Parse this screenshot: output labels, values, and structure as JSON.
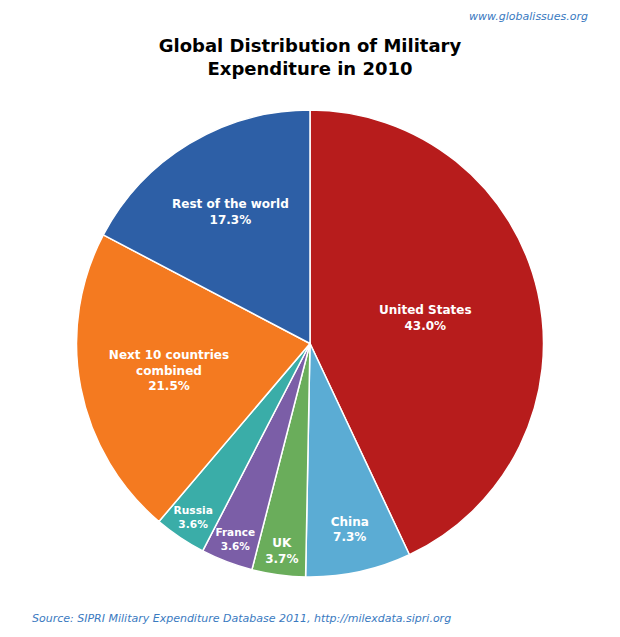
{
  "chart_data": {
    "type": "pie",
    "title": "Global Distribution of Military\nExpenditure in 2010",
    "values": [
      43.0,
      7.3,
      3.7,
      3.6,
      3.6,
      21.5,
      17.3
    ],
    "value_labels": [
      "United States\n43.0%",
      "China\n7.3%",
      "UK\n3.7%",
      "France\n3.6%",
      "Russia\n3.6%",
      "Next 10 countries\ncombined\n21.5%",
      "Rest of the world\n17.3%"
    ],
    "colors": [
      "#b71c1c",
      "#5bacd4",
      "#6aad5b",
      "#7b5ea7",
      "#3aada8",
      "#f47a20",
      "#2d5fa6"
    ],
    "data_labels": true,
    "annotations": [
      {
        "text": "www.globalissues.org",
        "color": "#3a7abf"
      },
      {
        "text": "Source: SIPRI Military Expenditure Database 2011, http://milexdata.sipri.org",
        "color": "#3a7abf"
      }
    ]
  }
}
